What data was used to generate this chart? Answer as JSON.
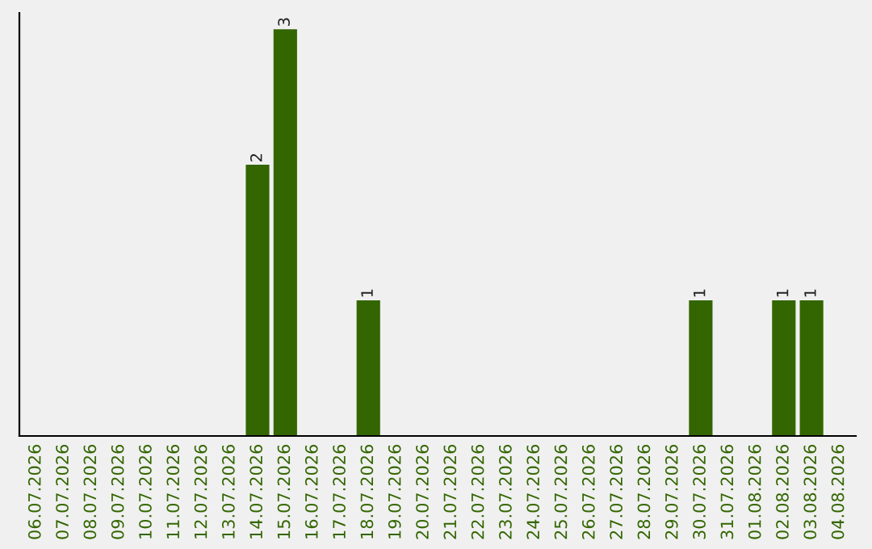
{
  "chart_data": {
    "type": "bar",
    "categories": [
      "06.07.2026",
      "07.07.2026",
      "08.07.2026",
      "09.07.2026",
      "10.07.2026",
      "11.07.2026",
      "12.07.2026",
      "13.07.2026",
      "14.07.2026",
      "15.07.2026",
      "16.07.2026",
      "17.07.2026",
      "18.07.2026",
      "19.07.2026",
      "20.07.2026",
      "21.07.2026",
      "22.07.2026",
      "23.07.2026",
      "24.07.2026",
      "25.07.2026",
      "26.07.2026",
      "27.07.2026",
      "28.07.2026",
      "29.07.2026",
      "30.07.2026",
      "31.07.2026",
      "01.08.2026",
      "02.08.2026",
      "03.08.2026",
      "04.08.2026"
    ],
    "values": [
      0,
      0,
      0,
      0,
      0,
      0,
      0,
      0,
      2,
      3,
      0,
      0,
      1,
      0,
      0,
      0,
      0,
      0,
      0,
      0,
      0,
      0,
      0,
      0,
      1,
      0,
      0,
      1,
      1,
      0
    ],
    "value_labels": [
      null,
      null,
      null,
      null,
      null,
      null,
      null,
      null,
      "2",
      "3",
      null,
      null,
      "1",
      null,
      null,
      null,
      null,
      null,
      null,
      null,
      null,
      null,
      null,
      null,
      "1",
      null,
      null,
      "1",
      "1",
      null
    ],
    "color": "#336600",
    "ylim": [
      0,
      3.12
    ],
    "tick_labels": "x",
    "grid": false,
    "legend": false
  }
}
